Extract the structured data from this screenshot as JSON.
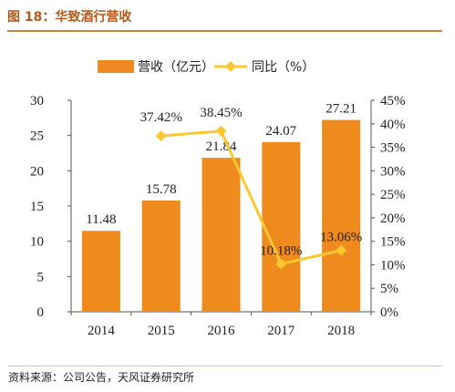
{
  "figure": {
    "title": "图 18：华致酒行营收",
    "source": "资料来源：公司公告，天风证券研究所"
  },
  "colors": {
    "bar": "#ef8a1f",
    "line": "#fcc830",
    "title_text": "#b4581a",
    "rule": "#c6823f"
  },
  "chart_data": {
    "type": "bar",
    "categories": [
      "2014",
      "2015",
      "2016",
      "2017",
      "2018"
    ],
    "series": [
      {
        "name": "营收（亿元）",
        "type": "bar",
        "axis": "left",
        "values": [
          11.48,
          15.78,
          21.84,
          24.07,
          27.21
        ],
        "labels": [
          "11.48",
          "15.78",
          "21.84",
          "24.07",
          "27.21"
        ]
      },
      {
        "name": "同比（%）",
        "type": "line",
        "axis": "right",
        "values": [
          null,
          37.42,
          38.45,
          10.18,
          13.06
        ],
        "labels": [
          "",
          "37.42%",
          "38.45%",
          "10.18%",
          "13.06%"
        ]
      }
    ],
    "ylim": [
      0,
      30
    ],
    "y_ticks": [
      "0",
      "5",
      "10",
      "15",
      "20",
      "25",
      "30"
    ],
    "y2lim": [
      0,
      45
    ],
    "y2_ticks": [
      "0%",
      "5%",
      "10%",
      "15%",
      "20%",
      "25%",
      "30%",
      "35%",
      "40%",
      "45%"
    ],
    "legend_position": "top",
    "grid": false
  }
}
